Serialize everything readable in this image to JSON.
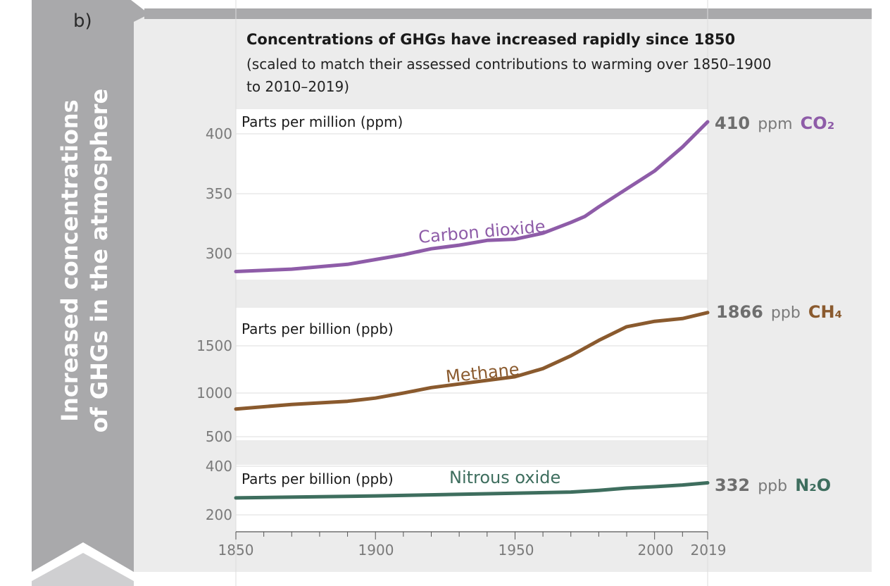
{
  "panel": {
    "letter": "b)",
    "side_title_line1": "Increased concentrations",
    "side_title_line2": "of GHGs in the atmosphere"
  },
  "title": "Concentrations of GHGs have increased rapidly since 1850",
  "subtitle_line1": "(scaled to match their assessed contributions to warming over 1850–1900",
  "subtitle_line2": "to 2010–2019)",
  "x_axis": {
    "ticks": [
      "1850",
      "1900",
      "1950",
      "2000",
      "2019"
    ]
  },
  "colors": {
    "co2": "#8e5ca8",
    "ch4": "#8a5a2e",
    "n2o": "#3e6e5e",
    "arrow": "#a9a9ab",
    "panel_bg": "#ececec"
  },
  "chart_data": [
    {
      "type": "line",
      "id": "co2",
      "unit_label": "Parts per million (ppm)",
      "series_label": "Carbon dioxide",
      "yticks": [
        "300",
        "350",
        "400"
      ],
      "end": {
        "value": "410",
        "unit": "ppm",
        "gas": "CO₂"
      },
      "x": [
        1850,
        1870,
        1890,
        1900,
        1910,
        1920,
        1930,
        1940,
        1950,
        1960,
        1970,
        1975,
        1980,
        1990,
        2000,
        2010,
        2019
      ],
      "y": [
        285,
        287,
        291,
        295,
        299,
        304,
        307,
        311,
        312,
        317,
        326,
        331,
        339,
        354,
        369,
        389,
        410
      ]
    },
    {
      "type": "line",
      "id": "ch4",
      "unit_label": "Parts per billion (ppb)",
      "series_label": "Methane",
      "yticks": [
        "500",
        "1000",
        "1500"
      ],
      "end": {
        "value": "1866",
        "unit": "ppb",
        "gas": "CH₄"
      },
      "x": [
        1850,
        1870,
        1890,
        1900,
        1910,
        1920,
        1930,
        1940,
        1950,
        1960,
        1970,
        1980,
        1990,
        2000,
        2010,
        2019
      ],
      "y": [
        805,
        855,
        890,
        925,
        980,
        1040,
        1080,
        1120,
        1160,
        1250,
        1390,
        1560,
        1710,
        1770,
        1800,
        1866
      ]
    },
    {
      "type": "line",
      "id": "n2o",
      "unit_label": "Parts per billion (ppb)",
      "series_label": "Nitrous oxide",
      "yticks": [
        "200",
        "400"
      ],
      "end": {
        "value": "332",
        "unit": "ppb",
        "gas": "N₂O"
      },
      "x": [
        1850,
        1900,
        1950,
        1970,
        1980,
        1990,
        2000,
        2010,
        2019
      ],
      "y": [
        270,
        278,
        289,
        294,
        301,
        310,
        316,
        323,
        332
      ]
    }
  ]
}
